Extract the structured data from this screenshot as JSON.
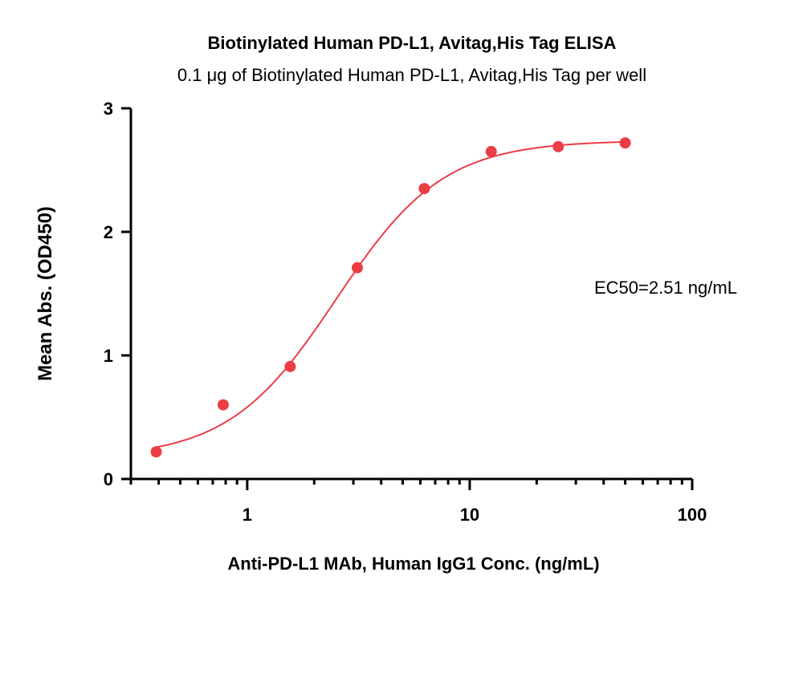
{
  "chart_data": {
    "type": "scatter",
    "title": "Biotinylated Human PD-L1, Avitag,His Tag ELISA",
    "subtitle": "0.1 μg of Biotinylated Human PD-L1, Avitag,His Tag per well",
    "xlabel": "Anti-PD-L1 MAb, Human IgG1 Conc. (ng/mL)",
    "ylabel": "Mean Abs. (OD450)",
    "x_scale": "log",
    "xlim": [
      0.3,
      100
    ],
    "ylim": [
      0,
      3
    ],
    "x_ticks": [
      {
        "value": 1,
        "label": "1"
      },
      {
        "value": 10,
        "label": "10"
      },
      {
        "value": 100,
        "label": "100"
      }
    ],
    "y_ticks": [
      {
        "value": 0,
        "label": "0"
      },
      {
        "value": 1,
        "label": "1"
      },
      {
        "value": 2,
        "label": "2"
      },
      {
        "value": 3,
        "label": "3"
      }
    ],
    "grid": false,
    "color": "#ec3d45",
    "series": [
      {
        "x": [
          0.39,
          0.78,
          1.56,
          3.125,
          6.25,
          12.5,
          25,
          50
        ],
        "y": [
          0.22,
          0.6,
          0.91,
          1.71,
          2.35,
          2.65,
          2.69,
          2.72
        ]
      }
    ],
    "fit": {
      "model": "4PL",
      "bottom": 0.17,
      "top": 2.74,
      "ec50": 2.51,
      "hill": 1.8
    },
    "annotation": "EC50=2.51 ng/mL"
  }
}
